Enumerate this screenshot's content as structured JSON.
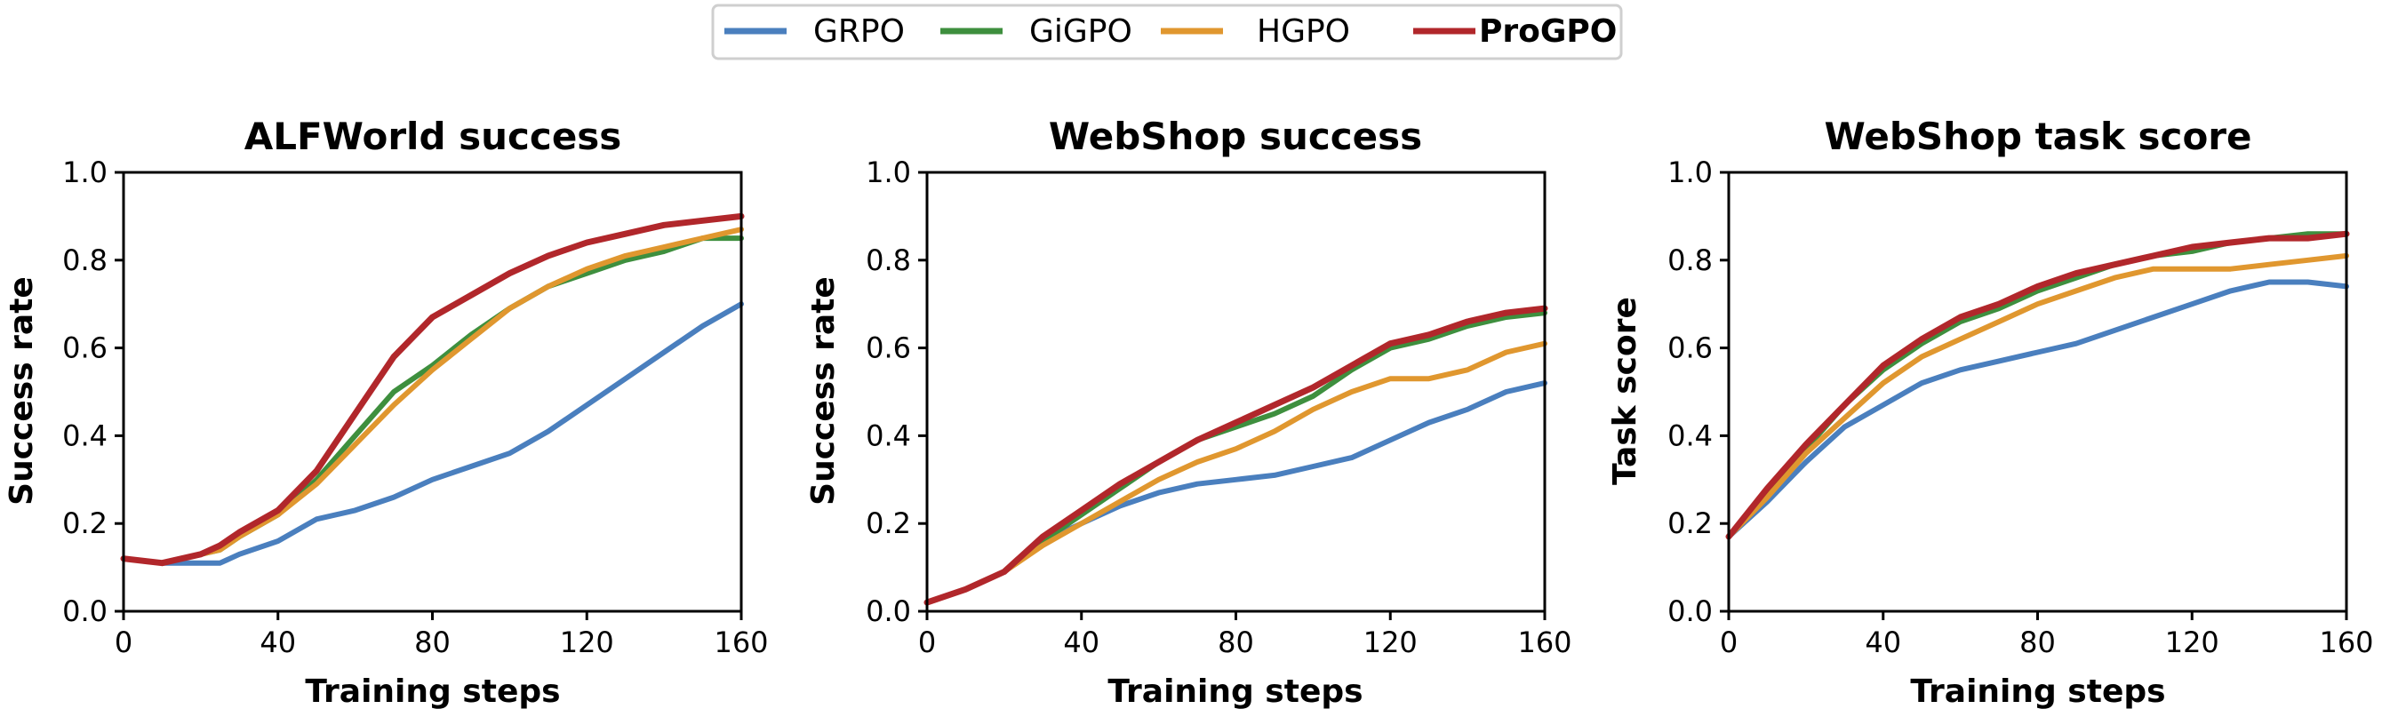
{
  "legend": {
    "items": [
      {
        "label": "GRPO",
        "color": "#4a7fbe",
        "bold": false
      },
      {
        "label": "GiGPO",
        "color": "#3e8f3e",
        "bold": false
      },
      {
        "label": "HGPO",
        "color": "#e0972f",
        "bold": false
      },
      {
        "label": "ProGPO",
        "color": "#b1272b",
        "bold": true
      }
    ]
  },
  "chart_data": [
    {
      "type": "line",
      "title": "ALFWorld success",
      "xlabel": "Training steps",
      "ylabel": "Success rate",
      "xlim": [
        0,
        160
      ],
      "ylim": [
        0,
        1.0
      ],
      "xticks": [
        "0",
        "40",
        "80",
        "120",
        "160"
      ],
      "yticks": [
        "0.0",
        "0.2",
        "0.4",
        "0.6",
        "0.8",
        "1.0"
      ],
      "x": [
        0,
        10,
        20,
        25,
        30,
        40,
        50,
        60,
        70,
        80,
        90,
        100,
        110,
        120,
        130,
        140,
        150,
        160
      ],
      "series": [
        {
          "name": "GRPO",
          "values": [
            0.12,
            0.11,
            0.11,
            0.11,
            0.13,
            0.16,
            0.21,
            0.23,
            0.26,
            0.3,
            0.33,
            0.36,
            0.41,
            0.47,
            0.53,
            0.59,
            0.65,
            0.7
          ]
        },
        {
          "name": "GiGPO",
          "values": [
            0.12,
            0.11,
            0.13,
            0.14,
            0.17,
            0.22,
            0.3,
            0.4,
            0.5,
            0.56,
            0.63,
            0.69,
            0.74,
            0.77,
            0.8,
            0.82,
            0.85,
            0.85
          ]
        },
        {
          "name": "HGPO",
          "values": [
            0.12,
            0.11,
            0.13,
            0.14,
            0.17,
            0.22,
            0.29,
            0.38,
            0.47,
            0.55,
            0.62,
            0.69,
            0.74,
            0.78,
            0.81,
            0.83,
            0.85,
            0.87
          ]
        },
        {
          "name": "ProGPO",
          "values": [
            0.12,
            0.11,
            0.13,
            0.15,
            0.18,
            0.23,
            0.32,
            0.45,
            0.58,
            0.67,
            0.72,
            0.77,
            0.81,
            0.84,
            0.86,
            0.88,
            0.89,
            0.9
          ]
        }
      ]
    },
    {
      "type": "line",
      "title": "WebShop success",
      "xlabel": "Training steps",
      "ylabel": "Success rate",
      "xlim": [
        0,
        160
      ],
      "ylim": [
        0,
        1.0
      ],
      "xticks": [
        "0",
        "40",
        "80",
        "120",
        "160"
      ],
      "yticks": [
        "0.0",
        "0.2",
        "0.4",
        "0.6",
        "0.8",
        "1.0"
      ],
      "x": [
        0,
        10,
        20,
        30,
        40,
        50,
        60,
        70,
        80,
        90,
        100,
        110,
        120,
        130,
        140,
        150,
        160
      ],
      "series": [
        {
          "name": "GRPO",
          "values": [
            0.02,
            0.05,
            0.09,
            0.16,
            0.2,
            0.24,
            0.27,
            0.29,
            0.3,
            0.31,
            0.33,
            0.35,
            0.39,
            0.43,
            0.46,
            0.5,
            0.52
          ]
        },
        {
          "name": "GiGPO",
          "values": [
            0.02,
            0.05,
            0.09,
            0.16,
            0.22,
            0.28,
            0.34,
            0.39,
            0.42,
            0.45,
            0.49,
            0.55,
            0.6,
            0.62,
            0.65,
            0.67,
            0.68
          ]
        },
        {
          "name": "HGPO",
          "values": [
            0.02,
            0.05,
            0.09,
            0.15,
            0.2,
            0.25,
            0.3,
            0.34,
            0.37,
            0.41,
            0.46,
            0.5,
            0.53,
            0.53,
            0.55,
            0.59,
            0.61
          ]
        },
        {
          "name": "ProGPO",
          "values": [
            0.02,
            0.05,
            0.09,
            0.17,
            0.23,
            0.29,
            0.34,
            0.39,
            0.43,
            0.47,
            0.51,
            0.56,
            0.61,
            0.63,
            0.66,
            0.68,
            0.69
          ]
        }
      ]
    },
    {
      "type": "line",
      "title": "WebShop task score",
      "xlabel": "Training steps",
      "ylabel": "Task score",
      "xlim": [
        0,
        160
      ],
      "ylim": [
        0,
        1.0
      ],
      "xticks": [
        "0",
        "40",
        "80",
        "120",
        "160"
      ],
      "yticks": [
        "0.0",
        "0.2",
        "0.4",
        "0.6",
        "0.8",
        "1.0"
      ],
      "x": [
        0,
        10,
        20,
        30,
        40,
        50,
        60,
        70,
        80,
        90,
        100,
        110,
        120,
        130,
        140,
        150,
        160
      ],
      "series": [
        {
          "name": "GRPO",
          "values": [
            0.17,
            0.25,
            0.34,
            0.42,
            0.47,
            0.52,
            0.55,
            0.57,
            0.59,
            0.61,
            0.64,
            0.67,
            0.7,
            0.73,
            0.75,
            0.75,
            0.74
          ]
        },
        {
          "name": "GiGPO",
          "values": [
            0.17,
            0.27,
            0.37,
            0.47,
            0.55,
            0.61,
            0.66,
            0.69,
            0.73,
            0.76,
            0.79,
            0.81,
            0.82,
            0.84,
            0.85,
            0.86,
            0.86
          ]
        },
        {
          "name": "HGPO",
          "values": [
            0.17,
            0.26,
            0.36,
            0.44,
            0.52,
            0.58,
            0.62,
            0.66,
            0.7,
            0.73,
            0.76,
            0.78,
            0.78,
            0.78,
            0.79,
            0.8,
            0.81
          ]
        },
        {
          "name": "ProGPO",
          "values": [
            0.17,
            0.28,
            0.38,
            0.47,
            0.56,
            0.62,
            0.67,
            0.7,
            0.74,
            0.77,
            0.79,
            0.81,
            0.83,
            0.84,
            0.85,
            0.85,
            0.86
          ]
        }
      ]
    }
  ]
}
